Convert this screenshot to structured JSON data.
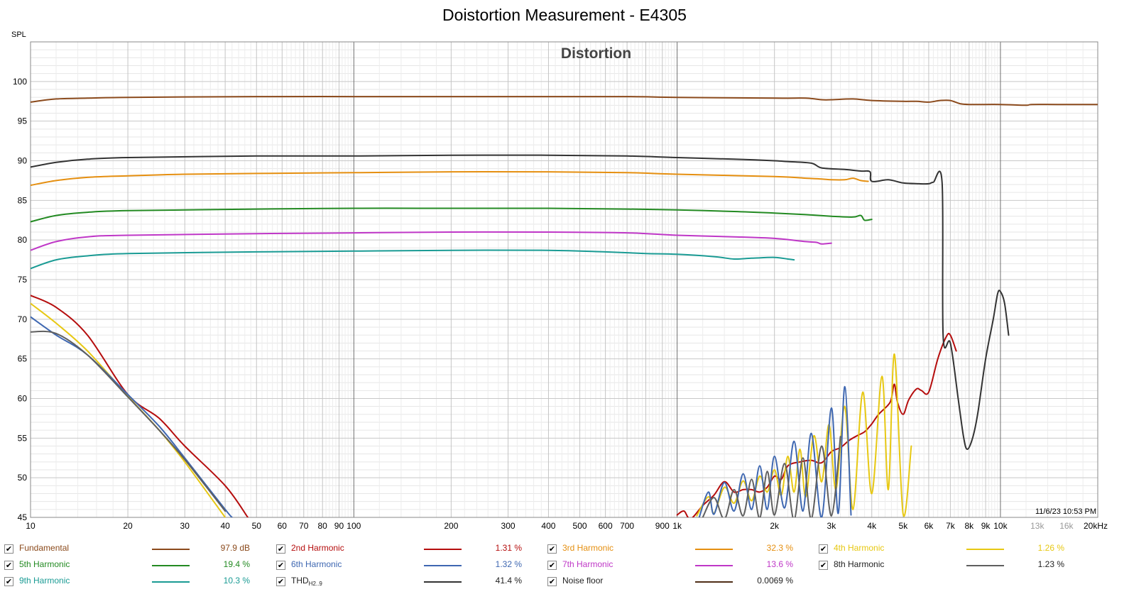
{
  "page_title": "Doistortion Measurement - E4305",
  "chart_data": {
    "type": "line",
    "title": "Distortion",
    "ylabel": "SPL",
    "xlabel": "",
    "x_scale": "log",
    "xlim": [
      10,
      20000
    ],
    "ylim": [
      45,
      105
    ],
    "y_ticks": [
      45,
      50,
      55,
      60,
      65,
      70,
      75,
      80,
      85,
      90,
      95,
      100
    ],
    "x_ticks": [
      {
        "v": 10,
        "t": "10"
      },
      {
        "v": 20,
        "t": "20"
      },
      {
        "v": 30,
        "t": "30"
      },
      {
        "v": 40,
        "t": "40"
      },
      {
        "v": 50,
        "t": "50"
      },
      {
        "v": 60,
        "t": "60"
      },
      {
        "v": 70,
        "t": "70"
      },
      {
        "v": 80,
        "t": "80"
      },
      {
        "v": 90,
        "t": "90"
      },
      {
        "v": 100,
        "t": "100"
      },
      {
        "v": 200,
        "t": "200"
      },
      {
        "v": 300,
        "t": "300"
      },
      {
        "v": 400,
        "t": "400"
      },
      {
        "v": 500,
        "t": "500"
      },
      {
        "v": 600,
        "t": "600"
      },
      {
        "v": 700,
        "t": "700"
      },
      {
        "v": 900,
        "t": "900"
      },
      {
        "v": 1000,
        "t": "1k"
      },
      {
        "v": 2000,
        "t": "2k"
      },
      {
        "v": 3000,
        "t": "3k"
      },
      {
        "v": 4000,
        "t": "4k"
      },
      {
        "v": 5000,
        "t": "5k"
      },
      {
        "v": 6000,
        "t": "6k"
      },
      {
        "v": 7000,
        "t": "7k"
      },
      {
        "v": 8000,
        "t": "8k"
      },
      {
        "v": 9000,
        "t": "9k"
      },
      {
        "v": 10000,
        "t": "10k"
      },
      {
        "v": 13000,
        "t": "13k",
        "muted": true
      },
      {
        "v": 16000,
        "t": "16k",
        "muted": true
      },
      {
        "v": 20000,
        "t": "20kHz"
      }
    ],
    "grid": true,
    "timestamp": "11/6/23 10:53 PM",
    "series": [
      {
        "name": "Fundamental",
        "color": "#8b4a1c",
        "value": "97.9 dB",
        "points": [
          [
            10,
            97.4
          ],
          [
            12,
            97.8
          ],
          [
            15,
            97.9
          ],
          [
            20,
            98.0
          ],
          [
            50,
            98.1
          ],
          [
            100,
            98.1
          ],
          [
            200,
            98.1
          ],
          [
            400,
            98.1
          ],
          [
            700,
            98.1
          ],
          [
            1000,
            98.0
          ],
          [
            2000,
            97.9
          ],
          [
            2500,
            97.9
          ],
          [
            2800,
            97.7
          ],
          [
            3000,
            97.7
          ],
          [
            3500,
            97.8
          ],
          [
            4000,
            97.6
          ],
          [
            5000,
            97.5
          ],
          [
            5500,
            97.5
          ],
          [
            6000,
            97.4
          ],
          [
            6500,
            97.6
          ],
          [
            7000,
            97.6
          ],
          [
            7500,
            97.2
          ],
          [
            8000,
            97.1
          ],
          [
            10000,
            97.1
          ],
          [
            12000,
            97.0
          ],
          [
            12500,
            97.1
          ],
          [
            15000,
            97.1
          ],
          [
            20000,
            97.1
          ]
        ]
      },
      {
        "name": "2nd Harmonic",
        "color": "#b50d0d",
        "value": "1.31 %",
        "points": [
          [
            10,
            73.0
          ],
          [
            12,
            71.5
          ],
          [
            15,
            68.0
          ],
          [
            20,
            60.5
          ],
          [
            25,
            57.5
          ],
          [
            30,
            54.0
          ],
          [
            40,
            49.0
          ],
          [
            47,
            45.0
          ],
          [
            1000,
            45.3
          ],
          [
            1050,
            45.8
          ],
          [
            1100,
            44.8
          ],
          [
            1200,
            46.5
          ],
          [
            1300,
            47.8
          ],
          [
            1400,
            49.5
          ],
          [
            1500,
            48.2
          ],
          [
            1600,
            48.5
          ],
          [
            1700,
            48.5
          ],
          [
            1800,
            48.2
          ],
          [
            1900,
            48.8
          ],
          [
            2000,
            50.2
          ],
          [
            2100,
            49.8
          ],
          [
            2200,
            51.5
          ],
          [
            2400,
            52.0
          ],
          [
            2600,
            52.2
          ],
          [
            2800,
            51.9
          ],
          [
            3000,
            53.3
          ],
          [
            3200,
            53.8
          ],
          [
            3400,
            54.7
          ],
          [
            3600,
            55.3
          ],
          [
            3800,
            55.8
          ],
          [
            4000,
            56.8
          ],
          [
            4200,
            58.0
          ],
          [
            4500,
            59.2
          ],
          [
            4600,
            60.0
          ],
          [
            4700,
            61.8
          ],
          [
            4800,
            59.6
          ],
          [
            5000,
            58.0
          ],
          [
            5200,
            59.8
          ],
          [
            5500,
            61.2
          ],
          [
            5700,
            61.0
          ],
          [
            6000,
            60.8
          ],
          [
            6400,
            65.0
          ],
          [
            6800,
            67.8
          ],
          [
            7000,
            68.0
          ],
          [
            7300,
            66.0
          ]
        ]
      },
      {
        "name": "3rd Harmonic",
        "color": "#e58f10",
        "value": "32.3 %",
        "points": [
          [
            10,
            86.9
          ],
          [
            12,
            87.5
          ],
          [
            15,
            87.9
          ],
          [
            20,
            88.1
          ],
          [
            30,
            88.3
          ],
          [
            50,
            88.4
          ],
          [
            100,
            88.5
          ],
          [
            200,
            88.6
          ],
          [
            400,
            88.6
          ],
          [
            700,
            88.5
          ],
          [
            1000,
            88.3
          ],
          [
            2000,
            88.0
          ],
          [
            2500,
            87.8
          ],
          [
            2800,
            87.7
          ],
          [
            3000,
            87.6
          ],
          [
            3300,
            87.6
          ],
          [
            3500,
            87.8
          ],
          [
            3700,
            87.5
          ],
          [
            3900,
            87.4
          ]
        ]
      },
      {
        "name": "4th Harmonic",
        "color": "#e7c813",
        "value": "1.26 %",
        "points": [
          [
            10,
            72.0
          ],
          [
            12,
            69.5
          ],
          [
            15,
            66.0
          ],
          [
            20,
            60.3
          ],
          [
            25,
            56.0
          ],
          [
            30,
            52.0
          ],
          [
            40,
            45.0
          ],
          [
            1150,
            45.2
          ],
          [
            1250,
            47.6
          ],
          [
            1300,
            45.5
          ],
          [
            1400,
            48.8
          ],
          [
            1500,
            46.8
          ],
          [
            1600,
            49.6
          ],
          [
            1700,
            47.1
          ],
          [
            1800,
            50.2
          ],
          [
            1900,
            48.2
          ],
          [
            2000,
            51.0
          ],
          [
            2100,
            47.8
          ],
          [
            2200,
            52.7
          ],
          [
            2300,
            48.2
          ],
          [
            2400,
            53.6
          ],
          [
            2500,
            47.6
          ],
          [
            2650,
            55.3
          ],
          [
            2800,
            49.5
          ],
          [
            2950,
            56.7
          ],
          [
            3100,
            48.5
          ],
          [
            3300,
            59.0
          ],
          [
            3500,
            46.0
          ],
          [
            3750,
            60.8
          ],
          [
            4000,
            48.0
          ],
          [
            4300,
            62.8
          ],
          [
            4500,
            48.5
          ],
          [
            4700,
            65.6
          ],
          [
            5000,
            45.4
          ],
          [
            5300,
            54.0
          ]
        ]
      },
      {
        "name": "5th Harmonic",
        "color": "#238a22",
        "value": "19.4 %",
        "points": [
          [
            10,
            82.3
          ],
          [
            12,
            83.1
          ],
          [
            15,
            83.5
          ],
          [
            20,
            83.7
          ],
          [
            50,
            83.9
          ],
          [
            100,
            84.0
          ],
          [
            200,
            84.0
          ],
          [
            400,
            84.0
          ],
          [
            700,
            83.9
          ],
          [
            1000,
            83.8
          ],
          [
            1500,
            83.6
          ],
          [
            2000,
            83.4
          ],
          [
            2500,
            83.2
          ],
          [
            3000,
            83.0
          ],
          [
            3500,
            82.9
          ],
          [
            3700,
            83.1
          ],
          [
            3800,
            82.5
          ],
          [
            4000,
            82.6
          ]
        ]
      },
      {
        "name": "6th Harmonic",
        "color": "#3e67b1",
        "value": "1.32 %",
        "points": [
          [
            10,
            70.3
          ],
          [
            12,
            68.0
          ],
          [
            15,
            65.5
          ],
          [
            20,
            60.5
          ],
          [
            25,
            56.5
          ],
          [
            30,
            52.5
          ],
          [
            40,
            46.0
          ],
          [
            42,
            45.0
          ],
          [
            1170,
            45.0
          ],
          [
            1250,
            48.2
          ],
          [
            1300,
            45.4
          ],
          [
            1400,
            49.4
          ],
          [
            1500,
            45.8
          ],
          [
            1600,
            50.5
          ],
          [
            1700,
            46.0
          ],
          [
            1800,
            51.5
          ],
          [
            1900,
            46.0
          ],
          [
            2000,
            52.7
          ],
          [
            2150,
            46.2
          ],
          [
            2300,
            54.6
          ],
          [
            2450,
            45.8
          ],
          [
            2600,
            55.6
          ],
          [
            2800,
            45.0
          ],
          [
            3000,
            58.8
          ],
          [
            3150,
            45.5
          ],
          [
            3300,
            61.5
          ],
          [
            3450,
            45.3
          ]
        ]
      },
      {
        "name": "7th Harmonic",
        "color": "#bf37c7",
        "value": "13.6 %",
        "points": [
          [
            10,
            78.7
          ],
          [
            12,
            79.8
          ],
          [
            15,
            80.4
          ],
          [
            20,
            80.6
          ],
          [
            50,
            80.8
          ],
          [
            100,
            80.9
          ],
          [
            200,
            81.0
          ],
          [
            400,
            81.0
          ],
          [
            700,
            80.9
          ],
          [
            1000,
            80.6
          ],
          [
            1500,
            80.4
          ],
          [
            2000,
            80.2
          ],
          [
            2500,
            79.8
          ],
          [
            2700,
            79.7
          ],
          [
            2800,
            79.5
          ],
          [
            3000,
            79.6
          ]
        ]
      },
      {
        "name": "8th Harmonic",
        "color": "#5f5f5f",
        "value": "1.23 %",
        "points": [
          [
            10,
            68.4
          ],
          [
            12,
            68.2
          ],
          [
            15,
            65.5
          ],
          [
            20,
            60.2
          ],
          [
            25,
            56.0
          ],
          [
            30,
            52.3
          ],
          [
            40,
            45.8
          ],
          [
            1200,
            45.0
          ],
          [
            1300,
            47.5
          ],
          [
            1400,
            44.8
          ],
          [
            1500,
            48.5
          ],
          [
            1600,
            45.2
          ],
          [
            1700,
            49.8
          ],
          [
            1800,
            44.9
          ],
          [
            1900,
            50.8
          ],
          [
            2000,
            45.3
          ],
          [
            2150,
            51.8
          ],
          [
            2300,
            44.7
          ],
          [
            2450,
            52.5
          ],
          [
            2600,
            44.8
          ],
          [
            2800,
            54.0
          ],
          [
            3000,
            45.2
          ],
          [
            3200,
            55.2
          ]
        ]
      },
      {
        "name": "9th Harmonic",
        "color": "#1a9b94",
        "value": "10.3 %",
        "points": [
          [
            10,
            76.4
          ],
          [
            12,
            77.5
          ],
          [
            15,
            78.0
          ],
          [
            20,
            78.3
          ],
          [
            50,
            78.5
          ],
          [
            100,
            78.6
          ],
          [
            200,
            78.7
          ],
          [
            400,
            78.7
          ],
          [
            600,
            78.5
          ],
          [
            800,
            78.3
          ],
          [
            1000,
            78.2
          ],
          [
            1300,
            77.9
          ],
          [
            1500,
            77.6
          ],
          [
            1700,
            77.7
          ],
          [
            2000,
            77.8
          ],
          [
            2200,
            77.6
          ],
          [
            2300,
            77.5
          ]
        ]
      },
      {
        "name": "THD",
        "name_sub": "H2..9",
        "color": "#333333",
        "value": "41.4 %",
        "points": [
          [
            10,
            89.2
          ],
          [
            12,
            89.8
          ],
          [
            15,
            90.2
          ],
          [
            20,
            90.4
          ],
          [
            50,
            90.6
          ],
          [
            100,
            90.6
          ],
          [
            200,
            90.7
          ],
          [
            400,
            90.7
          ],
          [
            700,
            90.6
          ],
          [
            1000,
            90.4
          ],
          [
            1500,
            90.2
          ],
          [
            2000,
            90.0
          ],
          [
            2200,
            89.9
          ],
          [
            2600,
            89.7
          ],
          [
            2800,
            89.1
          ],
          [
            3300,
            88.9
          ],
          [
            3700,
            88.7
          ],
          [
            3950,
            88.6
          ],
          [
            4000,
            87.4
          ],
          [
            4500,
            87.6
          ],
          [
            5000,
            87.2
          ],
          [
            5600,
            87.1
          ],
          [
            6000,
            87.1
          ],
          [
            6200,
            87.3
          ],
          [
            6600,
            87.2
          ],
          [
            6650,
            67.8
          ],
          [
            7000,
            67.0
          ],
          [
            7400,
            60.0
          ],
          [
            7700,
            55.0
          ],
          [
            7900,
            53.6
          ],
          [
            8200,
            55.0
          ],
          [
            8500,
            58.0
          ],
          [
            9000,
            65.0
          ],
          [
            9500,
            70.0
          ],
          [
            9800,
            73.2
          ],
          [
            10000,
            73.5
          ],
          [
            10300,
            72.0
          ],
          [
            10600,
            68.0
          ]
        ]
      },
      {
        "name": "Noise floor",
        "color": "#4f2e17",
        "value": "0.0069 %",
        "points": []
      }
    ]
  }
}
